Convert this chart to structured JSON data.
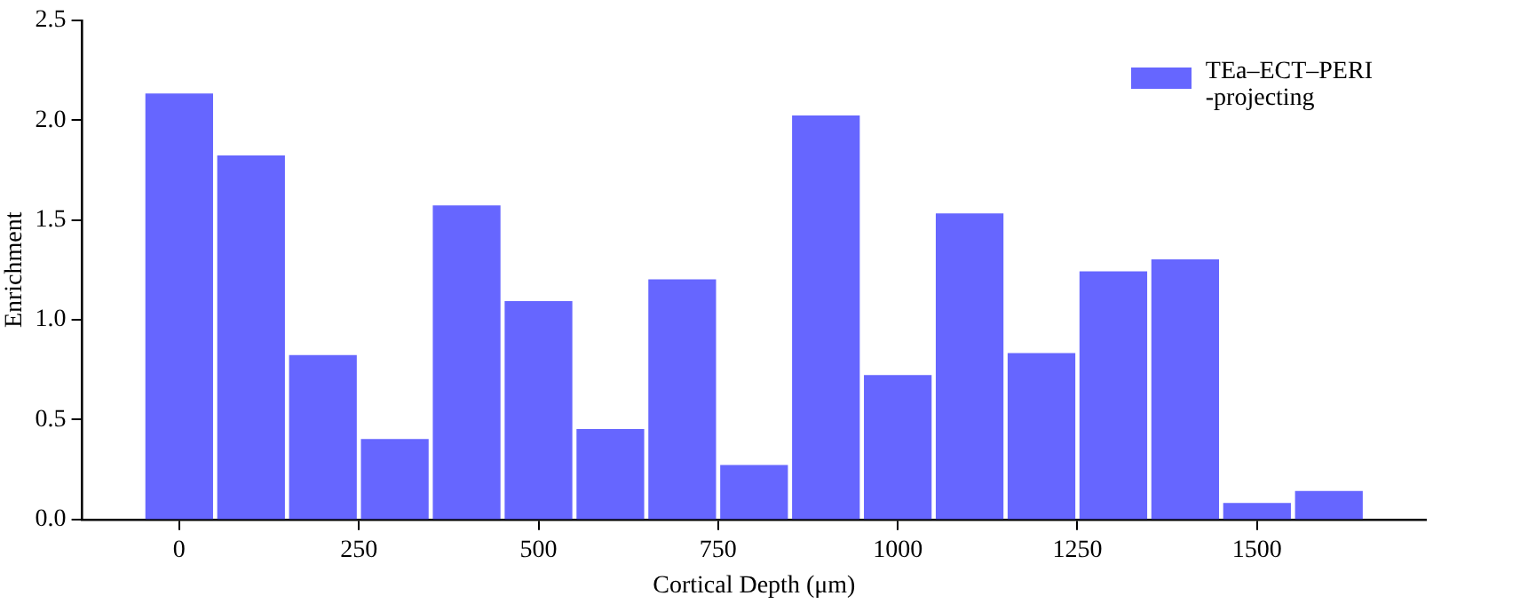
{
  "chart_data": {
    "type": "histogram",
    "xlabel": "Cortical Depth (μm)",
    "ylabel": "Enrichment",
    "bins": [
      -50,
      50,
      150,
      250,
      350,
      450,
      550,
      650,
      750,
      850,
      950,
      1050,
      1150,
      1250,
      1350,
      1450,
      1550,
      1650
    ],
    "series": [
      {
        "name": "TEa–ECT–PERI\n-projecting",
        "color": "#6666ff",
        "values": [
          2.13,
          1.82,
          0.82,
          0.4,
          1.57,
          1.09,
          0.45,
          1.2,
          0.27,
          2.02,
          0.72,
          1.53,
          0.83,
          1.24,
          1.3,
          0.08,
          0.14
        ]
      }
    ],
    "xlim": [
      -135,
      1735
    ],
    "xticks": [
      0,
      250,
      500,
      750,
      1000,
      1250,
      1500
    ],
    "ylim": [
      0,
      2.5
    ],
    "yticks": [
      {
        "value": 0,
        "label": "0.0"
      },
      {
        "value": 0.5,
        "label": "0.5"
      },
      {
        "value": 1,
        "label": "1.0"
      },
      {
        "value": 1.5,
        "label": "1.5"
      },
      {
        "value": 2,
        "label": "2.0"
      },
      {
        "value": 2.5,
        "label": "2.5"
      }
    ],
    "grid": false,
    "legend": "top right"
  }
}
